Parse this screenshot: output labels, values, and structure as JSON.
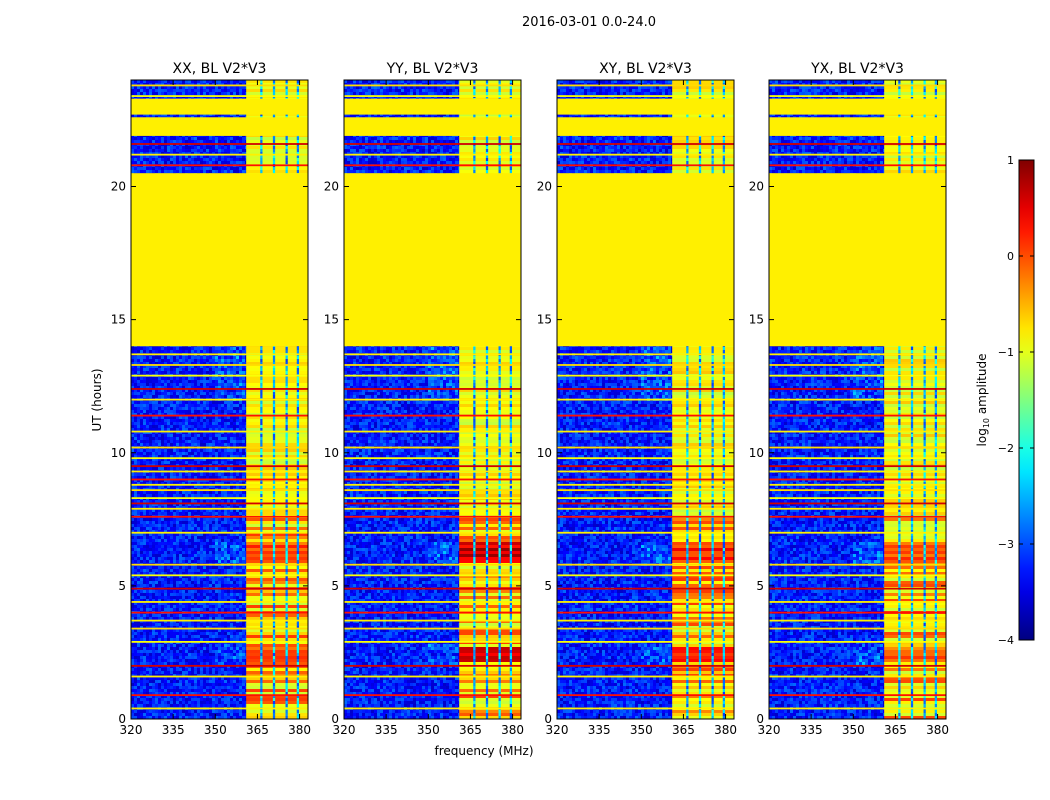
{
  "chart_data": {
    "type": "heatmap",
    "suptitle": "2016-03-01 0.0-24.0",
    "xlabel": "frequency (MHz)",
    "ylabel": "UT (hours)",
    "xlim": [
      320,
      383
    ],
    "ylim": [
      0,
      24
    ],
    "xticks": [
      320,
      335,
      350,
      365,
      380
    ],
    "yticks": [
      0,
      5,
      10,
      15,
      20
    ],
    "panels": [
      {
        "title": "XX, BL V2*V3",
        "pol": "XX",
        "rfi_peak": 0.3
      },
      {
        "title": "YY, BL V2*V3",
        "pol": "YY",
        "rfi_peak": 0.9
      },
      {
        "title": "XY, BL V2*V3",
        "pol": "XY",
        "rfi_peak": 0.5
      },
      {
        "title": "YX, BL V2*V3",
        "pol": "YX",
        "rfi_peak": 0.2
      }
    ],
    "colorbar": {
      "label": "log10 amplitude",
      "label_text": "log",
      "label_sub": "10",
      "label_rest": " amplitude",
      "range": [
        -4,
        1
      ],
      "ticks": [
        1,
        0,
        -1,
        -2,
        -3,
        -4
      ],
      "tick_labels": [
        "1",
        "0",
        "−1",
        "−2",
        "−3",
        "−4"
      ],
      "colormap": "jet"
    },
    "flagged_value": -0.8,
    "flagged_time_ranges_hours": [
      [
        14.0,
        20.5
      ],
      [
        21.9,
        22.6
      ],
      [
        22.7,
        23.3
      ]
    ],
    "rfi_frequency_band_mhz": [
      361,
      383
    ],
    "rfi_gap_channels_mhz": [
      [
        366.0,
        366.8
      ],
      [
        370.5,
        371.3
      ],
      [
        375.0,
        375.8
      ],
      [
        379.0,
        379.8
      ]
    ],
    "bright_rfi_time_ranges_hours": [
      [
        2.1,
        2.7
      ],
      [
        5.9,
        6.6
      ]
    ],
    "horizontal_flag_lines_hours": [
      0.4,
      0.9,
      1.6,
      2.0,
      2.9,
      3.4,
      3.7,
      4.0,
      4.4,
      4.9,
      5.4,
      5.8,
      7.0,
      7.6,
      7.9,
      8.1,
      8.3,
      8.6,
      8.8,
      9.0,
      9.3,
      9.5,
      9.8,
      10.2,
      10.8,
      11.4,
      12.0,
      12.4,
      12.9,
      13.3,
      13.7,
      20.8,
      21.2,
      21.6,
      23.4,
      23.8
    ]
  }
}
